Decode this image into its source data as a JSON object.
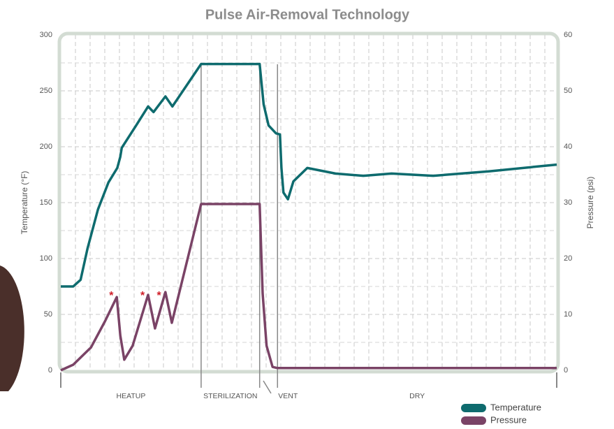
{
  "chart_data": {
    "type": "line",
    "title": "Pulse Air-Removal Technology",
    "y_label": "Temperature (°F)",
    "y2_label": "Pressure (psi)",
    "xlim": [
      0,
      100
    ],
    "ylim": [
      0,
      300
    ],
    "yticks": [
      0,
      50,
      100,
      150,
      200,
      250,
      300
    ],
    "y2lim": [
      0,
      60
    ],
    "y2ticks": [
      0,
      10,
      20,
      30,
      40,
      50,
      60
    ],
    "grid": true,
    "legend": "lower right",
    "series": [
      {
        "name": "Temperature",
        "color": "#0e6b6e",
        "x": [
          0,
          2.5,
          4,
          5.4,
          7.5,
          9.6,
          11.4,
          12,
          12.3,
          15.2,
          17.6,
          18.7,
          21.1,
          22.5,
          28.3,
          40.1,
          40.9,
          41.9,
          43.4,
          44.2,
          44.5,
          44.9,
          45.8,
          46.9,
          49.7,
          55.4,
          61,
          66.7,
          75.1,
          86.3,
          100
        ],
        "values": [
          75,
          75,
          81,
          109,
          144,
          168,
          181,
          191,
          199,
          219,
          236,
          231,
          245,
          236,
          274,
          274,
          238,
          219,
          212,
          211,
          181,
          159,
          153,
          169,
          181,
          176,
          174,
          176,
          174,
          178,
          184
        ]
      },
      {
        "name": "Pressure",
        "color": "#7a4366",
        "axis": "y2",
        "x": [
          0,
          2.5,
          6.1,
          8.9,
          11.3,
          12,
          12.8,
          14.5,
          17.6,
          19,
          21.1,
          22.4,
          28.3,
          40.1,
          40.7,
          41.5,
          42.7,
          43.7,
          100
        ],
        "values": [
          0,
          1,
          4.1,
          8.75,
          13.1,
          6.25,
          1.9,
          4.4,
          13.5,
          7.5,
          14,
          8.5,
          29.75,
          29.75,
          13.75,
          4.4,
          0.6,
          0.4,
          0.4
        ]
      }
    ],
    "annotations": [
      {
        "text": "*",
        "x": 10.2,
        "y": 13.8
      },
      {
        "text": "*",
        "x": 16.5,
        "y": 13.8
      },
      {
        "text": "*",
        "x": 19.8,
        "y": 13.8
      }
    ],
    "phases": [
      {
        "label": "HEATUP",
        "start": 0,
        "end": 28.3
      },
      {
        "label": "STERILIZATION",
        "start": 28.3,
        "end": 40.1
      },
      {
        "label": "VENT",
        "start": 43.7,
        "end": 47.5
      },
      {
        "label": "DRY",
        "start": 43.7,
        "end": 100
      }
    ]
  }
}
